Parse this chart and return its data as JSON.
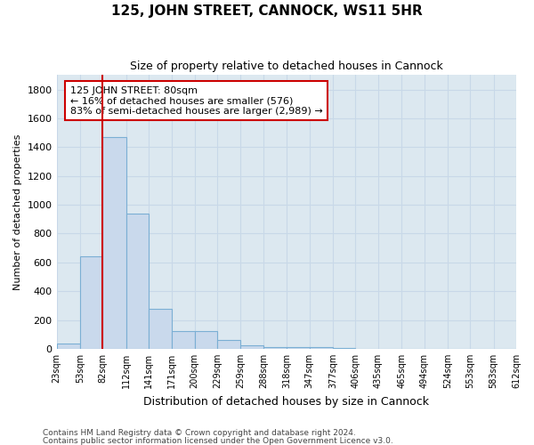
{
  "title": "125, JOHN STREET, CANNOCK, WS11 5HR",
  "subtitle": "Size of property relative to detached houses in Cannock",
  "xlabel": "Distribution of detached houses by size in Cannock",
  "ylabel": "Number of detached properties",
  "bar_color": "#c9d9ec",
  "bar_edge_color": "#7bafd4",
  "grid_color": "#c8d8e8",
  "background_color": "#dce8f0",
  "annotation_box_color": "#ffffff",
  "annotation_border_color": "#cc0000",
  "vline_color": "#cc0000",
  "vline_x": 82,
  "annotation_line1": "125 JOHN STREET: 80sqm",
  "annotation_line2": "← 16% of detached houses are smaller (576)",
  "annotation_line3": "83% of semi-detached houses are larger (2,989) →",
  "footer_line1": "Contains HM Land Registry data © Crown copyright and database right 2024.",
  "footer_line2": "Contains public sector information licensed under the Open Government Licence v3.0.",
  "bin_edges": [
    23,
    53,
    82,
    112,
    141,
    171,
    200,
    229,
    259,
    288,
    318,
    347,
    377,
    406,
    435,
    465,
    494,
    524,
    553,
    583,
    612
  ],
  "bar_heights": [
    35,
    645,
    1470,
    940,
    280,
    125,
    125,
    60,
    25,
    10,
    10,
    10,
    5,
    0,
    0,
    0,
    0,
    0,
    0,
    0
  ],
  "ylim": [
    0,
    1900
  ],
  "yticks": [
    0,
    200,
    400,
    600,
    800,
    1000,
    1200,
    1400,
    1600,
    1800
  ],
  "title_fontsize": 11,
  "subtitle_fontsize": 9,
  "ylabel_fontsize": 8,
  "xlabel_fontsize": 9,
  "ytick_fontsize": 8,
  "xtick_fontsize": 7,
  "annotation_fontsize": 8,
  "footer_fontsize": 6.5
}
